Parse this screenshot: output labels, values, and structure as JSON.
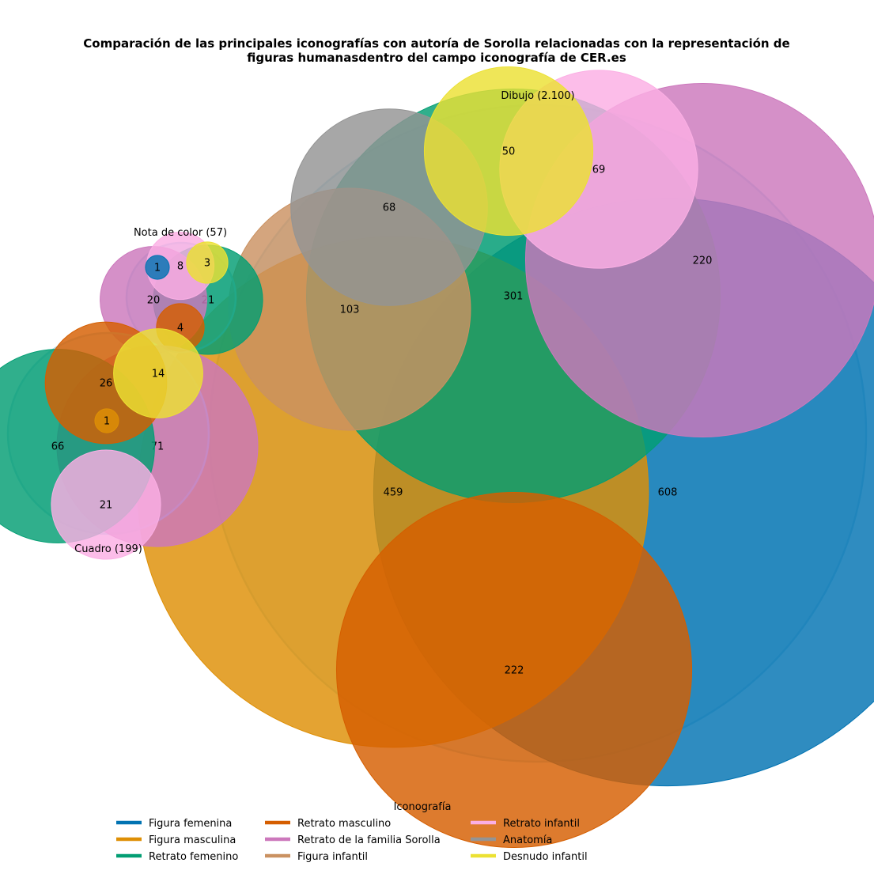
{
  "chart_data": {
    "type": "packed-bubble",
    "title_lines": [
      "Comparación de las principales iconografías con autoría de Sorolla relacionadas con la representación de",
      "figuras humanasdentro del campo iconografía de CER.es"
    ],
    "legend": {
      "title": "Iconografía",
      "placement": "bottom-center",
      "entries": [
        {
          "name": "Figura femenina",
          "color": "#0173b2"
        },
        {
          "name": "Figura masculina",
          "color": "#de8f05"
        },
        {
          "name": "Retrato femenino",
          "color": "#029e73"
        },
        {
          "name": "Retrato masculino",
          "color": "#d55e00"
        },
        {
          "name": "Retrato de la familia Sorolla",
          "color": "#cc78bc"
        },
        {
          "name": "Figura infantil",
          "color": "#ca9161"
        },
        {
          "name": "Retrato infantil",
          "color": "#fbafe4"
        },
        {
          "name": "Anatomía",
          "color": "#949494"
        },
        {
          "name": "Desnudo infantil",
          "color": "#ece133"
        }
      ]
    },
    "groups": [
      {
        "label": "Dibujo (2.100)",
        "total": 2100,
        "bubbles": [
          {
            "iconografia": "Figura femenina",
            "value": 608,
            "label": "608"
          },
          {
            "iconografia": "Figura masculina",
            "value": 459,
            "label": "459"
          },
          {
            "iconografia": "Retrato femenino",
            "value": 301,
            "label": "301"
          },
          {
            "iconografia": "Retrato masculino",
            "value": 222,
            "label": "222"
          },
          {
            "iconografia": "Retrato de la familia Sorolla",
            "value": 220,
            "label": "220"
          },
          {
            "iconografia": "Figura infantil",
            "value": 103,
            "label": "103"
          },
          {
            "iconografia": "Retrato infantil",
            "value": 69,
            "label": "69"
          },
          {
            "iconografia": "Anatomía",
            "value": 68,
            "label": "68"
          },
          {
            "iconografia": "Desnudo infantil",
            "value": 50,
            "label": "50"
          }
        ]
      },
      {
        "label": "Nota de color (57)",
        "total": 57,
        "bubbles": [
          {
            "iconografia": "Retrato femenino",
            "value": 21,
            "label": "21"
          },
          {
            "iconografia": "Retrato de la familia Sorolla",
            "value": 20,
            "label": "20"
          },
          {
            "iconografia": "Retrato infantil",
            "value": 8,
            "label": "8"
          },
          {
            "iconografia": "Retrato masculino",
            "value": 4,
            "label": "4"
          },
          {
            "iconografia": "Desnudo infantil",
            "value": 3,
            "label": "3"
          },
          {
            "iconografia": "Figura femenina",
            "value": 1,
            "label": "1"
          }
        ]
      },
      {
        "label": "Cuadro (199)",
        "total": 199,
        "bubbles": [
          {
            "iconografia": "Retrato de la familia Sorolla",
            "value": 71,
            "label": "71"
          },
          {
            "iconografia": "Retrato femenino",
            "value": 66,
            "label": "66"
          },
          {
            "iconografia": "Retrato masculino",
            "value": 26,
            "label": "26"
          },
          {
            "iconografia": "Retrato infantil",
            "value": 21,
            "label": "21"
          },
          {
            "iconografia": "Desnudo infantil",
            "value": 14,
            "label": "14"
          },
          {
            "iconografia": "Figura masculina",
            "value": 1,
            "label": "1"
          }
        ]
      }
    ]
  }
}
